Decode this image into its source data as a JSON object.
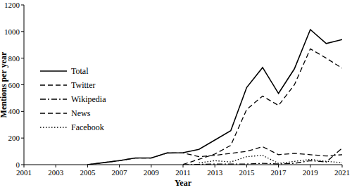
{
  "chart_data": {
    "type": "line",
    "x_label": "Year",
    "y_label": "Mentions per year",
    "x": [
      2001,
      2002,
      2003,
      2004,
      2005,
      2006,
      2007,
      2008,
      2009,
      2010,
      2011,
      2012,
      2013,
      2014,
      2015,
      2016,
      2017,
      2018,
      2019,
      2020,
      2021
    ],
    "series": [
      {
        "name": "Total",
        "color": "#000000",
        "line_style": "solid",
        "values": [
          null,
          null,
          null,
          null,
          0,
          15,
          30,
          50,
          50,
          88,
          90,
          115,
          185,
          255,
          580,
          730,
          535,
          720,
          1015,
          910,
          940
        ]
      },
      {
        "name": "Twitter",
        "color": "#000000",
        "line_style": "dashed",
        "values": [
          null,
          null,
          null,
          null,
          null,
          null,
          null,
          null,
          null,
          null,
          2,
          40,
          80,
          145,
          415,
          515,
          445,
          600,
          870,
          800,
          725
        ]
      },
      {
        "name": "Wikipedia",
        "color": "#000000",
        "line_style": "dashdot",
        "values": [
          null,
          null,
          null,
          null,
          null,
          null,
          null,
          null,
          null,
          null,
          0,
          2,
          5,
          5,
          5,
          10,
          5,
          10,
          30,
          20,
          125
        ]
      },
      {
        "name": "News",
        "color": "#000000",
        "line_style": "dashed",
        "values": [
          null,
          null,
          null,
          null,
          0,
          15,
          30,
          50,
          50,
          88,
          88,
          60,
          70,
          85,
          100,
          135,
          75,
          85,
          75,
          65,
          75
        ]
      },
      {
        "name": "Facebook",
        "color": "#000000",
        "line_style": "dotted",
        "values": [
          null,
          null,
          null,
          null,
          null,
          null,
          null,
          null,
          null,
          null,
          null,
          13,
          30,
          20,
          60,
          70,
          10,
          25,
          40,
          25,
          15
        ]
      }
    ],
    "xlim": [
      2001,
      2021
    ],
    "xticks": [
      2001,
      2003,
      2005,
      2007,
      2009,
      2011,
      2013,
      2015,
      2017,
      2019,
      2021
    ],
    "ylim": [
      0,
      1200
    ],
    "yticks": [
      0,
      200,
      400,
      600,
      800,
      1000,
      1200
    ],
    "grid": false,
    "legend": "upper left"
  }
}
